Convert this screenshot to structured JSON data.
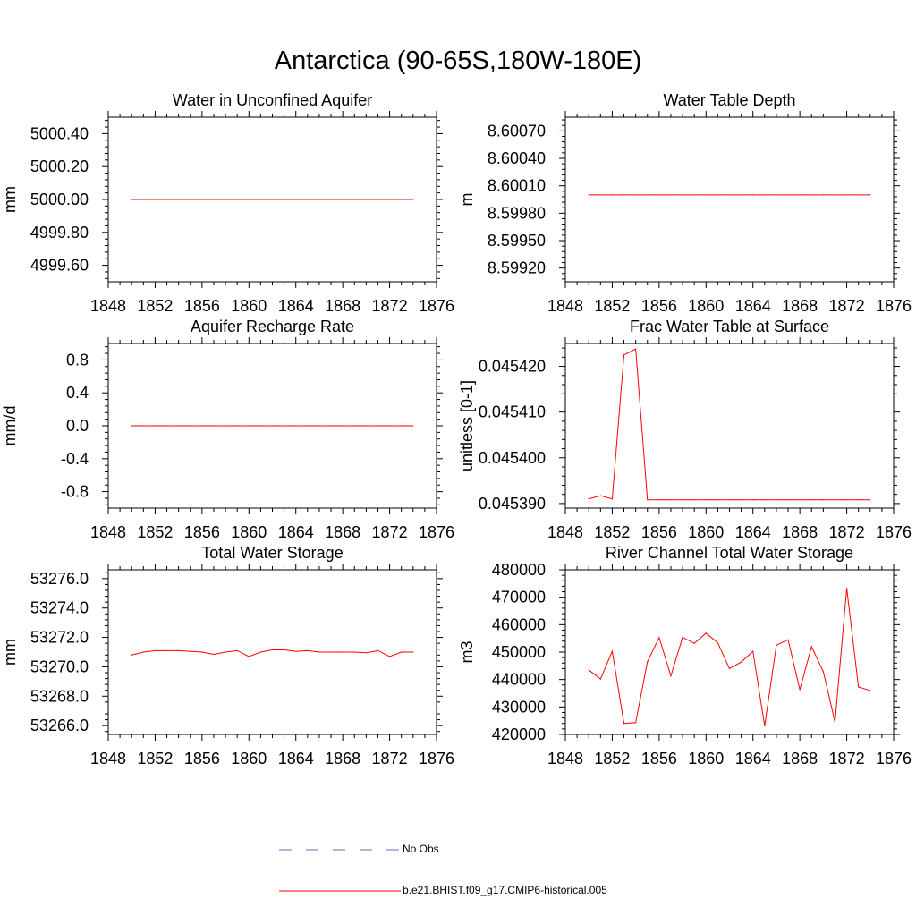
{
  "title": "Antarctica (90-65S,180W-180E)",
  "legend": {
    "obs_label": "No Obs",
    "model_label": "b.e21.BHIST.f09_g17.CMIP6-historical.005",
    "colors": {
      "obs": "#6b6bb0",
      "model": "#ff0000"
    }
  },
  "chart_data": [
    {
      "type": "line",
      "title": "Water in Unconfined Aquifer",
      "ylabel": "mm",
      "xlim": [
        1848,
        1876
      ],
      "ylim": [
        4999.5,
        5000.5
      ],
      "xticks": [
        1848,
        1852,
        1856,
        1860,
        1864,
        1868,
        1872,
        1876
      ],
      "xtick_labels": [
        "1848",
        "1852",
        "1856",
        "1860",
        "1864",
        "1868",
        "1872",
        "1876"
      ],
      "yticks": [
        4999.6,
        4999.8,
        5000.0,
        5000.2,
        5000.4
      ],
      "ytick_labels": [
        "4999.60",
        "4999.80",
        "5000.00",
        "5000.20",
        "5000.40"
      ],
      "series": [
        {
          "color": "#ff0000",
          "x": [
            1850,
            1851,
            1852,
            1853,
            1854,
            1855,
            1856,
            1857,
            1858,
            1859,
            1860,
            1861,
            1862,
            1863,
            1864,
            1865,
            1866,
            1867,
            1868,
            1869,
            1870,
            1871,
            1872,
            1873,
            1874
          ],
          "y": [
            5000.0,
            5000.0,
            5000.0,
            5000.0,
            5000.0,
            5000.0,
            5000.0,
            5000.0,
            5000.0,
            5000.0,
            5000.0,
            5000.0,
            5000.0,
            5000.0,
            5000.0,
            5000.0,
            5000.0,
            5000.0,
            5000.0,
            5000.0,
            5000.0,
            5000.0,
            5000.0,
            5000.0,
            5000.0
          ]
        }
      ]
    },
    {
      "type": "line",
      "title": "Water Table Depth",
      "ylabel": "m",
      "xlim": [
        1848,
        1876
      ],
      "ylim": [
        8.59905,
        8.60085
      ],
      "xticks": [
        1848,
        1852,
        1856,
        1860,
        1864,
        1868,
        1872,
        1876
      ],
      "xtick_labels": [
        "1848",
        "1852",
        "1856",
        "1860",
        "1864",
        "1868",
        "1872",
        "1876"
      ],
      "yticks": [
        8.5992,
        8.5995,
        8.5998,
        8.6001,
        8.6004,
        8.6007
      ],
      "ytick_labels": [
        "8.59920",
        "8.59950",
        "8.59980",
        "8.60010",
        "8.60040",
        "8.60070"
      ],
      "series": [
        {
          "color": "#ff0000",
          "x": [
            1850,
            1851,
            1852,
            1853,
            1854,
            1855,
            1856,
            1857,
            1858,
            1859,
            1860,
            1861,
            1862,
            1863,
            1864,
            1865,
            1866,
            1867,
            1868,
            1869,
            1870,
            1871,
            1872,
            1873,
            1874
          ],
          "y": [
            8.6,
            8.6,
            8.6,
            8.6,
            8.6,
            8.6,
            8.6,
            8.6,
            8.6,
            8.6,
            8.6,
            8.6,
            8.6,
            8.6,
            8.6,
            8.6,
            8.6,
            8.6,
            8.6,
            8.6,
            8.6,
            8.6,
            8.6,
            8.6,
            8.6
          ]
        }
      ]
    },
    {
      "type": "line",
      "title": "Aquifer Recharge Rate",
      "ylabel": "mm/d",
      "xlim": [
        1848,
        1876
      ],
      "ylim": [
        -1.0,
        1.0
      ],
      "xticks": [
        1848,
        1852,
        1856,
        1860,
        1864,
        1868,
        1872,
        1876
      ],
      "xtick_labels": [
        "1848",
        "1852",
        "1856",
        "1860",
        "1864",
        "1868",
        "1872",
        "1876"
      ],
      "yticks": [
        -0.8,
        -0.4,
        0.0,
        0.4,
        0.8
      ],
      "ytick_labels": [
        "-0.8",
        "-0.4",
        "0.0",
        "0.4",
        "0.8"
      ],
      "series": [
        {
          "color": "#ff0000",
          "x": [
            1850,
            1851,
            1852,
            1853,
            1854,
            1855,
            1856,
            1857,
            1858,
            1859,
            1860,
            1861,
            1862,
            1863,
            1864,
            1865,
            1866,
            1867,
            1868,
            1869,
            1870,
            1871,
            1872,
            1873,
            1874
          ],
          "y": [
            0,
            0,
            0,
            0,
            0,
            0,
            0,
            0,
            0,
            0,
            0,
            0,
            0,
            0,
            0,
            0,
            0,
            0,
            0,
            0,
            0,
            0,
            0,
            0,
            0
          ]
        }
      ]
    },
    {
      "type": "line",
      "title": "Frac Water Table at Surface",
      "ylabel": "unitless [0-1]",
      "xlim": [
        1848,
        1876
      ],
      "ylim": [
        0.045389,
        0.045425
      ],
      "xticks": [
        1848,
        1852,
        1856,
        1860,
        1864,
        1868,
        1872,
        1876
      ],
      "xtick_labels": [
        "1848",
        "1852",
        "1856",
        "1860",
        "1864",
        "1868",
        "1872",
        "1876"
      ],
      "yticks": [
        0.04539,
        0.0454,
        0.04541,
        0.04542
      ],
      "ytick_labels": [
        "0.045390",
        "0.045400",
        "0.045410",
        "0.045420"
      ],
      "series": [
        {
          "color": "#ff0000",
          "x": [
            1850,
            1851,
            1852,
            1853,
            1854,
            1855,
            1856,
            1857,
            1858,
            1859,
            1860,
            1861,
            1862,
            1863,
            1864,
            1865,
            1866,
            1867,
            1868,
            1869,
            1870,
            1871,
            1872,
            1873,
            1874
          ],
          "y": [
            0.045391,
            0.0453917,
            0.045391,
            0.0454225,
            0.0454238,
            0.0453908,
            0.0453908,
            0.0453908,
            0.0453908,
            0.0453908,
            0.0453908,
            0.0453908,
            0.0453908,
            0.0453908,
            0.0453908,
            0.0453908,
            0.0453908,
            0.0453908,
            0.0453908,
            0.0453908,
            0.0453908,
            0.0453908,
            0.0453908,
            0.0453908,
            0.0453908
          ]
        }
      ]
    },
    {
      "type": "line",
      "title": "Total Water Storage",
      "ylabel": "mm",
      "xlim": [
        1848,
        1876
      ],
      "ylim": [
        53265.4,
        53276.6
      ],
      "xticks": [
        1848,
        1852,
        1856,
        1860,
        1864,
        1868,
        1872,
        1876
      ],
      "xtick_labels": [
        "1848",
        "1852",
        "1856",
        "1860",
        "1864",
        "1868",
        "1872",
        "1876"
      ],
      "yticks": [
        53266.0,
        53268.0,
        53270.0,
        53272.0,
        53274.0,
        53276.0
      ],
      "ytick_labels": [
        "53266.0",
        "53268.0",
        "53270.0",
        "53272.0",
        "53274.0",
        "53276.0"
      ],
      "series": [
        {
          "color": "#ff0000",
          "x": [
            1850,
            1851,
            1852,
            1853,
            1854,
            1855,
            1856,
            1857,
            1858,
            1859,
            1860,
            1861,
            1862,
            1863,
            1864,
            1865,
            1866,
            1867,
            1868,
            1869,
            1870,
            1871,
            1872,
            1873,
            1874
          ],
          "y": [
            53270.8,
            53271.0,
            53271.1,
            53271.1,
            53271.1,
            53271.05,
            53271.0,
            53270.85,
            53271.0,
            53271.1,
            53270.7,
            53271.0,
            53271.15,
            53271.15,
            53271.05,
            53271.1,
            53271.0,
            53271.0,
            53271.0,
            53271.0,
            53270.95,
            53271.1,
            53270.7,
            53271.0,
            53271.0
          ]
        }
      ]
    },
    {
      "type": "line",
      "title": "River Channel Total Water Storage",
      "ylabel": "m3",
      "xlim": [
        1848,
        1876
      ],
      "ylim": [
        420000,
        480000
      ],
      "xticks": [
        1848,
        1852,
        1856,
        1860,
        1864,
        1868,
        1872,
        1876
      ],
      "xtick_labels": [
        "1848",
        "1852",
        "1856",
        "1860",
        "1864",
        "1868",
        "1872",
        "1876"
      ],
      "yticks": [
        420000,
        430000,
        440000,
        450000,
        460000,
        470000,
        480000
      ],
      "ytick_labels": [
        "420000",
        "430000",
        "440000",
        "450000",
        "460000",
        "470000",
        "480000"
      ],
      "series": [
        {
          "color": "#ff0000",
          "x": [
            1850,
            1851,
            1852,
            1853,
            1854,
            1855,
            1856,
            1857,
            1858,
            1859,
            1860,
            1861,
            1862,
            1863,
            1864,
            1865,
            1866,
            1867,
            1868,
            1869,
            1870,
            1871,
            1872,
            1873,
            1874
          ],
          "y": [
            443500,
            440200,
            450300,
            424000,
            424300,
            446500,
            455300,
            441300,
            455400,
            453200,
            456900,
            453400,
            444000,
            446400,
            450300,
            423100,
            452500,
            454500,
            436300,
            452000,
            442900,
            424500,
            473300,
            437300,
            436000
          ]
        }
      ]
    }
  ]
}
